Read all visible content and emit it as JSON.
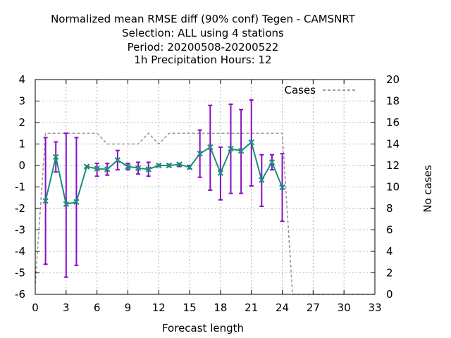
{
  "chart_data": {
    "type": "line",
    "title_lines": [
      "Normalized mean RMSE diff (90% conf) Tegen - CAMSNRT",
      "Selection: ALL using     4 stations",
      "Period: 20200508-20200522",
      "1h Precipitation   Hours:  12"
    ],
    "xlabel": "Forecast length",
    "ylabel_right": "No cases",
    "xlim": [
      0,
      33
    ],
    "ylim": [
      -6,
      4
    ],
    "y2lim": [
      0,
      20
    ],
    "x_ticks": [
      0,
      3,
      6,
      9,
      12,
      15,
      18,
      21,
      24,
      27,
      30,
      33
    ],
    "y_ticks": [
      -6,
      -5,
      -4,
      -3,
      -2,
      -1,
      0,
      1,
      2,
      3,
      4
    ],
    "y2_ticks": [
      0,
      2,
      4,
      6,
      8,
      10,
      12,
      14,
      16,
      18,
      20
    ],
    "grid": true,
    "legend_position": "top-right",
    "colors": {
      "series_line": "#1a8f7a",
      "series_marker": "#1a8f7a",
      "error_bars": "#8a0fc4",
      "cases": "#999999",
      "grid": "#b0b0b0"
    },
    "series": [
      {
        "x": [
          1,
          2,
          3,
          4,
          5,
          6,
          7,
          8,
          9,
          10,
          11,
          12,
          13,
          14,
          15,
          16,
          17,
          18,
          19,
          20,
          21,
          22,
          23,
          24
        ],
        "values": [
          -1.65,
          0.4,
          -1.8,
          -1.7,
          -0.05,
          -0.15,
          -0.18,
          0.25,
          -0.05,
          -0.12,
          -0.18,
          0.0,
          0.0,
          0.05,
          -0.08,
          0.55,
          0.85,
          -0.35,
          0.78,
          0.68,
          1.08,
          -0.68,
          0.15,
          -1.02
        ],
        "lower": [
          -4.6,
          -0.3,
          -5.2,
          -4.65,
          -0.1,
          -0.5,
          -0.45,
          -0.2,
          -0.2,
          -0.4,
          -0.5,
          -0.05,
          -0.05,
          -0.05,
          -0.15,
          -0.55,
          -1.15,
          -1.6,
          -1.3,
          -1.3,
          -0.95,
          -1.9,
          -0.2,
          -2.6
        ],
        "upper": [
          1.3,
          1.1,
          1.5,
          1.3,
          0.0,
          0.1,
          0.1,
          0.7,
          0.1,
          0.15,
          0.15,
          0.05,
          0.05,
          0.1,
          0.0,
          1.65,
          2.8,
          0.85,
          2.85,
          2.6,
          3.05,
          0.5,
          0.5,
          0.55
        ]
      },
      {
        "name": "Cases",
        "axis": "right",
        "x": [
          0,
          1,
          2,
          3,
          4,
          5,
          6,
          7,
          8,
          9,
          10,
          11,
          12,
          13,
          14,
          15,
          16,
          17,
          18,
          19,
          20,
          21,
          22,
          23,
          24,
          25,
          26,
          27,
          28,
          29,
          30,
          31,
          32,
          33
        ],
        "values": [
          1,
          15,
          15,
          15,
          15,
          15,
          15,
          14,
          14,
          14,
          14,
          15,
          14,
          15,
          15,
          15,
          15,
          15,
          15,
          15,
          15,
          15,
          15,
          15,
          15,
          0,
          0,
          0,
          0,
          0,
          0,
          0,
          0,
          0
        ]
      }
    ]
  }
}
